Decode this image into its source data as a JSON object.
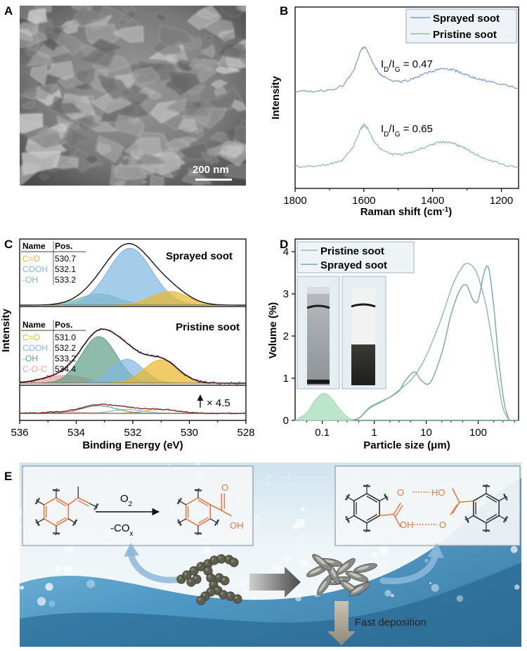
{
  "panels": {
    "a": "A",
    "b": "B",
    "c": "C",
    "d": "D",
    "e": "E"
  },
  "sem": {
    "scale_bar_label": "200 nm",
    "scale_bar_length_nm": 200
  },
  "chart_data": [
    {
      "panel": "B",
      "type": "line",
      "xlabel": "Raman shift (cm⁻¹)",
      "ylabel": "Intensity",
      "xlim": [
        1800,
        1150
      ],
      "x_reversed": true,
      "xticks": [
        1800,
        1600,
        1400,
        1200
      ],
      "legend": "top-right",
      "series": [
        {
          "name": "Sprayed soot",
          "color": "#7f9fcb",
          "x": [
            1800,
            1750,
            1700,
            1660,
            1630,
            1610,
            1600,
            1590,
            1570,
            1550,
            1520,
            1490,
            1460,
            1430,
            1400,
            1380,
            1360,
            1340,
            1320,
            1300,
            1280,
            1250,
            1200,
            1150
          ],
          "y": [
            0.1,
            0.11,
            0.13,
            0.2,
            0.42,
            0.72,
            0.8,
            0.74,
            0.5,
            0.36,
            0.28,
            0.26,
            0.3,
            0.37,
            0.42,
            0.45,
            0.46,
            0.44,
            0.4,
            0.36,
            0.32,
            0.28,
            0.22,
            0.16
          ]
        },
        {
          "name": "Pristine soot",
          "color": "#8fc0a6",
          "x": [
            1800,
            1750,
            1700,
            1660,
            1630,
            1610,
            1600,
            1590,
            1570,
            1550,
            1520,
            1490,
            1460,
            1430,
            1400,
            1380,
            1360,
            1340,
            1320,
            1300,
            1280,
            1250,
            1200,
            1150
          ],
          "y": [
            0.08,
            0.09,
            0.12,
            0.2,
            0.42,
            0.7,
            0.77,
            0.72,
            0.5,
            0.36,
            0.29,
            0.28,
            0.32,
            0.39,
            0.45,
            0.48,
            0.49,
            0.47,
            0.42,
            0.36,
            0.3,
            0.22,
            0.12,
            0.06
          ]
        }
      ],
      "annotations": [
        {
          "text_main": "I",
          "sub1": "D",
          "mid": "/I",
          "sub2": "G",
          "value": " = 0.47"
        },
        {
          "text_main": "I",
          "sub1": "D",
          "mid": "/I",
          "sub2": "G",
          "value": " = 0.65"
        }
      ]
    },
    {
      "panel": "C",
      "type": "area",
      "xlabel": "Binding Energy (eV)",
      "ylabel": "Intensity",
      "xlim": [
        536,
        528
      ],
      "x_reversed": true,
      "xticks": [
        536,
        534,
        532,
        530,
        528
      ],
      "multiplier_label": "× 4.5",
      "subplots": [
        {
          "title": "Sprayed soot",
          "table_header": [
            "Name",
            "Pos."
          ],
          "components": [
            {
              "name": "C=O",
              "pos": "530.7",
              "color": "#e8b72a",
              "center": 530.7,
              "amp": 0.22,
              "sigma": 0.65
            },
            {
              "name": "COOH",
              "pos": "532.1",
              "color": "#7fb6e0",
              "center": 532.1,
              "amp": 0.92,
              "sigma": 0.78
            },
            {
              "name": "-OH",
              "pos": "533.2",
              "color": "#7fbca0",
              "center": 533.2,
              "amp": 0.18,
              "sigma": 0.7
            }
          ]
        },
        {
          "title": "Pristine soot",
          "table_header": [
            "Name",
            "Pos."
          ],
          "components": [
            {
              "name": "C=O",
              "pos": "531.0",
              "color": "#e8b72a",
              "center": 531.0,
              "amp": 0.36,
              "sigma": 0.6
            },
            {
              "name": "COOH",
              "pos": "532.2",
              "color": "#7fb6e0",
              "center": 532.2,
              "amp": 0.37,
              "sigma": 0.55
            },
            {
              "name": "-OH",
              "pos": "533.2",
              "color": "#5fa086",
              "center": 533.2,
              "amp": 0.72,
              "sigma": 0.62
            },
            {
              "name": "C-O-C",
              "pos": "534.4",
              "color": "#ef9d9d",
              "center": 534.4,
              "amp": 0.12,
              "sigma": 0.75
            }
          ]
        }
      ]
    },
    {
      "panel": "D",
      "type": "line",
      "xlabel": "Particle size (μm)",
      "ylabel": "Volume (%)",
      "x_scale": "log",
      "xlim": [
        0.03,
        600
      ],
      "ylim": [
        0,
        4.2
      ],
      "xtick_labels": [
        "0.1",
        "1",
        "10",
        "100"
      ],
      "xtick_values": [
        0.1,
        1,
        10,
        100
      ],
      "yticks": [
        0,
        1,
        2,
        3,
        4
      ],
      "legend": "top-left",
      "series": [
        {
          "name": "Pristine soot",
          "color": "#8fbfae",
          "x": [
            0.3,
            0.5,
            0.8,
            1.2,
            2,
            3,
            5,
            8,
            12,
            20,
            30,
            40,
            55,
            70,
            90,
            110,
            140,
            180,
            230,
            300,
            400
          ],
          "y": [
            0,
            0.05,
            0.28,
            0.4,
            0.55,
            0.72,
            0.95,
            1.3,
            1.75,
            2.45,
            3.1,
            3.45,
            3.7,
            3.7,
            3.55,
            3.25,
            2.75,
            2.0,
            1.1,
            0.3,
            0
          ]
        },
        {
          "name": "Sprayed soot",
          "color": "#7fa8b8",
          "x": [
            0.3,
            0.5,
            0.8,
            1.2,
            2,
            3,
            4,
            6,
            8,
            12,
            20,
            30,
            45,
            60,
            80,
            100,
            130,
            160,
            200,
            250,
            320,
            400
          ],
          "y": [
            0,
            0.05,
            0.3,
            0.42,
            0.55,
            0.7,
            0.95,
            1.15,
            0.95,
            0.9,
            1.6,
            2.5,
            3.1,
            3.2,
            2.85,
            2.85,
            3.5,
            3.6,
            2.7,
            1.4,
            0.4,
            0
          ]
        },
        {
          "name": "",
          "color": "#b0e0c2",
          "fill": true,
          "x": [
            0.03,
            0.05,
            0.07,
            0.09,
            0.11,
            0.13,
            0.16,
            0.2,
            0.25,
            0.32,
            0.4
          ],
          "y": [
            0,
            0.18,
            0.45,
            0.6,
            0.64,
            0.6,
            0.48,
            0.32,
            0.18,
            0.06,
            0
          ]
        }
      ]
    }
  ],
  "scheme_e": {
    "reagent_top": "O",
    "reagent_top_sub": "2",
    "reagent_bottom": "-CO",
    "reagent_bottom_sub": "x",
    "acid_o_label": "O",
    "acid_oh_label": "OH",
    "dimer_o_left": "O",
    "dimer_oh_left": "OH",
    "dimer_ho_right": "HO",
    "dimer_o_right": "O",
    "deposition_label": "Fast deposition",
    "highlight_color": "#e07a45"
  }
}
